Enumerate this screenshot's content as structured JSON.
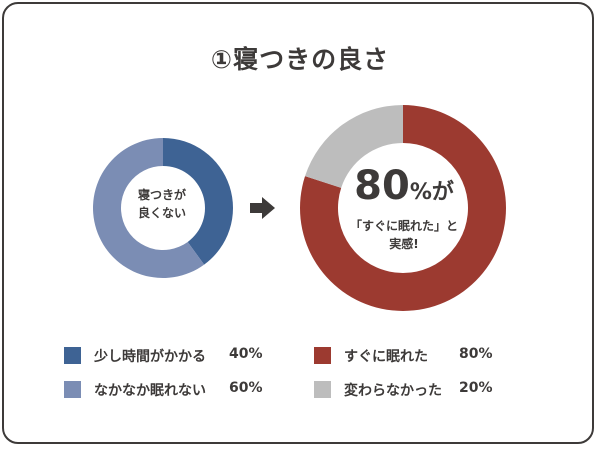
{
  "title": "①寝つきの良さ",
  "colors": {
    "blue_dark": "#3e6394",
    "blue_light": "#7b8db4",
    "red": "#9c3a30",
    "gray": "#bdbdbd",
    "text": "#3d3a39"
  },
  "left_chart": {
    "center_line1": "寝つきが",
    "center_line2": "良くない"
  },
  "right_chart": {
    "big_value": "80",
    "big_suffix": "%が",
    "msg_line1": "「すぐに眠れた」と",
    "msg_line2": "実感!"
  },
  "arrow": "arrow-right-icon",
  "chart_data": [
    {
      "type": "pie",
      "donut": true,
      "categories": [
        "少し時間がかかる",
        "なかなか眠れない"
      ],
      "values": [
        40,
        60
      ],
      "value_labels": [
        "40%",
        "60%"
      ],
      "colors": [
        "#3e6394",
        "#7b8db4"
      ]
    },
    {
      "type": "pie",
      "donut": true,
      "categories": [
        "すぐに眠れた",
        "変わらなかった"
      ],
      "values": [
        80,
        20
      ],
      "value_labels": [
        "80%",
        "20%"
      ],
      "colors": [
        "#9c3a30",
        "#bdbdbd"
      ]
    }
  ]
}
